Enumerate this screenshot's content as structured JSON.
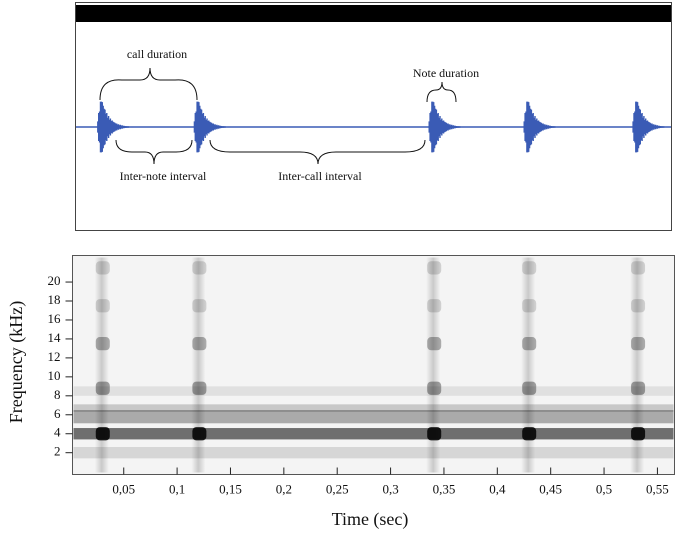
{
  "chart_data": [
    {
      "type": "waveform",
      "annotations": [
        "call duration",
        "Note duration",
        "Inter-note interval",
        "Inter-call interval"
      ],
      "x": [
        0.0285,
        0.119,
        0.339,
        0.428,
        0.53
      ],
      "color": "#3a5bb5"
    },
    {
      "type": "spectrogram",
      "x_label": "Time (sec)",
      "y_label": "Frequency (kHz)",
      "xlim": [
        0.002,
        0.566
      ],
      "ylim": [
        -0.3,
        22.8
      ],
      "xticks": [
        {
          "value": 0.05,
          "label": "0,05"
        },
        {
          "value": 0.1,
          "label": "0,1"
        },
        {
          "value": 0.15,
          "label": "0,15"
        },
        {
          "value": 0.2,
          "label": "0,2"
        },
        {
          "value": 0.25,
          "label": "0,25"
        },
        {
          "value": 0.3,
          "label": "0,3"
        },
        {
          "value": 0.35,
          "label": "0,35"
        },
        {
          "value": 0.4,
          "label": "0,4"
        },
        {
          "value": 0.45,
          "label": "0,45"
        },
        {
          "value": 0.5,
          "label": "0,5"
        },
        {
          "value": 0.55,
          "label": "0,55"
        }
      ],
      "yticks": [
        2,
        4,
        6,
        8,
        10,
        12,
        14,
        16,
        18,
        20
      ]
    }
  ]
}
